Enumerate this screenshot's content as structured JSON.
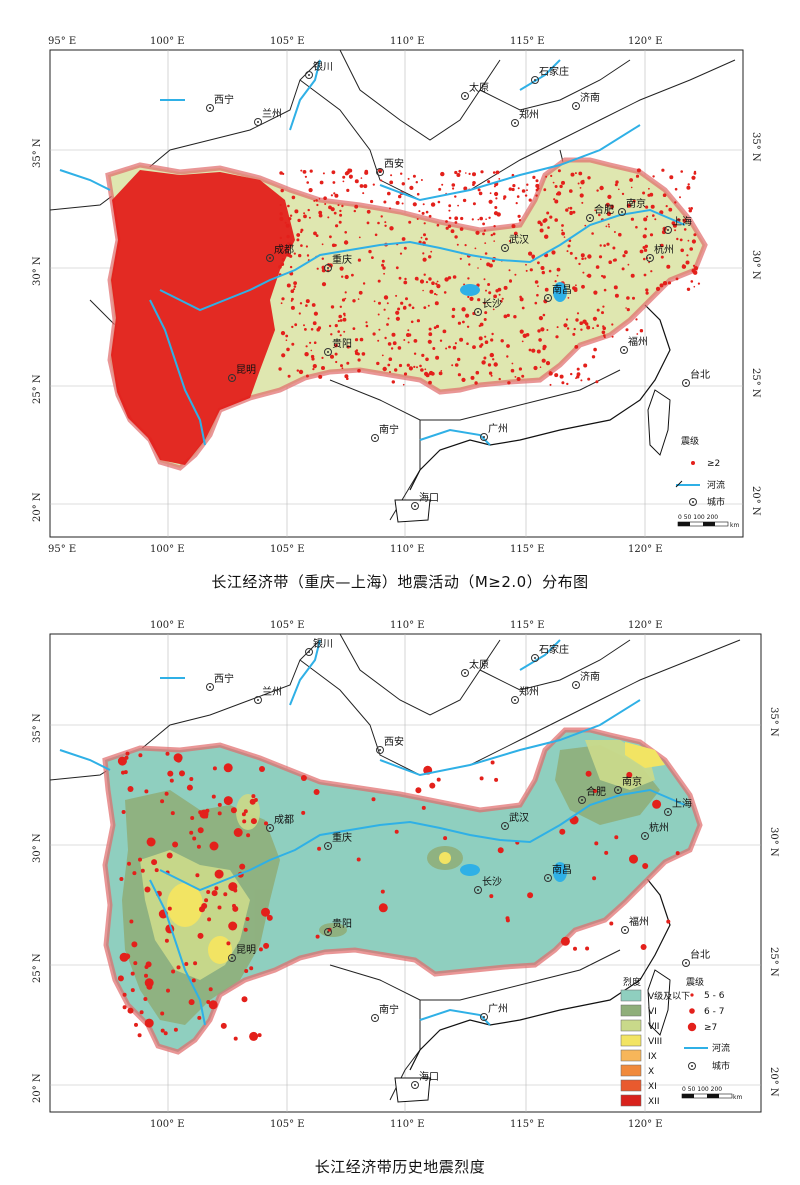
{
  "map1": {
    "caption": "长江经济带（重庆—上海）地震活动（M≥2.0）分布图",
    "lon_labels": [
      "95° E",
      "100° E",
      "105° E",
      "110° E",
      "115° E",
      "120° E"
    ],
    "lat_labels": [
      "35° N",
      "30° N",
      "25° N",
      "20° N"
    ],
    "cities": [
      "太原",
      "石家庄",
      "济南",
      "西宁",
      "兰州",
      "银川",
      "西安",
      "郑州",
      "成都",
      "重庆",
      "武汉",
      "长沙",
      "南昌",
      "合肥",
      "南京",
      "上海",
      "杭州",
      "福州",
      "台北",
      "贵阳",
      "昆明",
      "南宁",
      "广州",
      "海口"
    ],
    "legend": {
      "title": "震级",
      "magnitude": "≥2",
      "river": "河流",
      "city": "城市",
      "scale": "0 50 100 200",
      "scale_unit": "km"
    },
    "colors": {
      "region_fill": "#dfe7b0",
      "quake": "#e3201b",
      "river": "#2fb0e6",
      "outline": "#e06a6a"
    }
  },
  "map2": {
    "caption": "长江经济带历史地震烈度",
    "lon_labels": [
      "100° E",
      "105° E",
      "110° E",
      "115° E",
      "120° E"
    ],
    "lat_labels": [
      "35° N",
      "30° N",
      "25° N",
      "20° N"
    ],
    "cities": [
      "太原",
      "石家庄",
      "济南",
      "西宁",
      "兰州",
      "银川",
      "西安",
      "郑州",
      "成都",
      "重庆",
      "武汉",
      "长沙",
      "南昌",
      "合肥",
      "南京",
      "上海",
      "杭州",
      "福州",
      "台北",
      "贵阳",
      "昆明",
      "南宁",
      "广州",
      "海口"
    ],
    "legend": {
      "intensity_title": "烈度",
      "magnitude_title": "震级",
      "intensity_classes": [
        {
          "label": "V级及以下",
          "color": "#8fcfbf"
        },
        {
          "label": "VI",
          "color": "#8fae7a"
        },
        {
          "label": "VII",
          "color": "#c9d98a"
        },
        {
          "label": "VIII",
          "color": "#f2e463"
        },
        {
          "label": "IX",
          "color": "#f7b65a"
        },
        {
          "label": "X",
          "color": "#f08a3c"
        },
        {
          "label": "XI",
          "color": "#e95a2e"
        },
        {
          "label": "XII",
          "color": "#d8221c"
        }
      ],
      "magnitude_classes": [
        "5 - 6",
        "6 - 7",
        "≥7"
      ],
      "river": "河流",
      "city": "城市",
      "scale": "0 50 100 200",
      "scale_unit": "km"
    }
  }
}
